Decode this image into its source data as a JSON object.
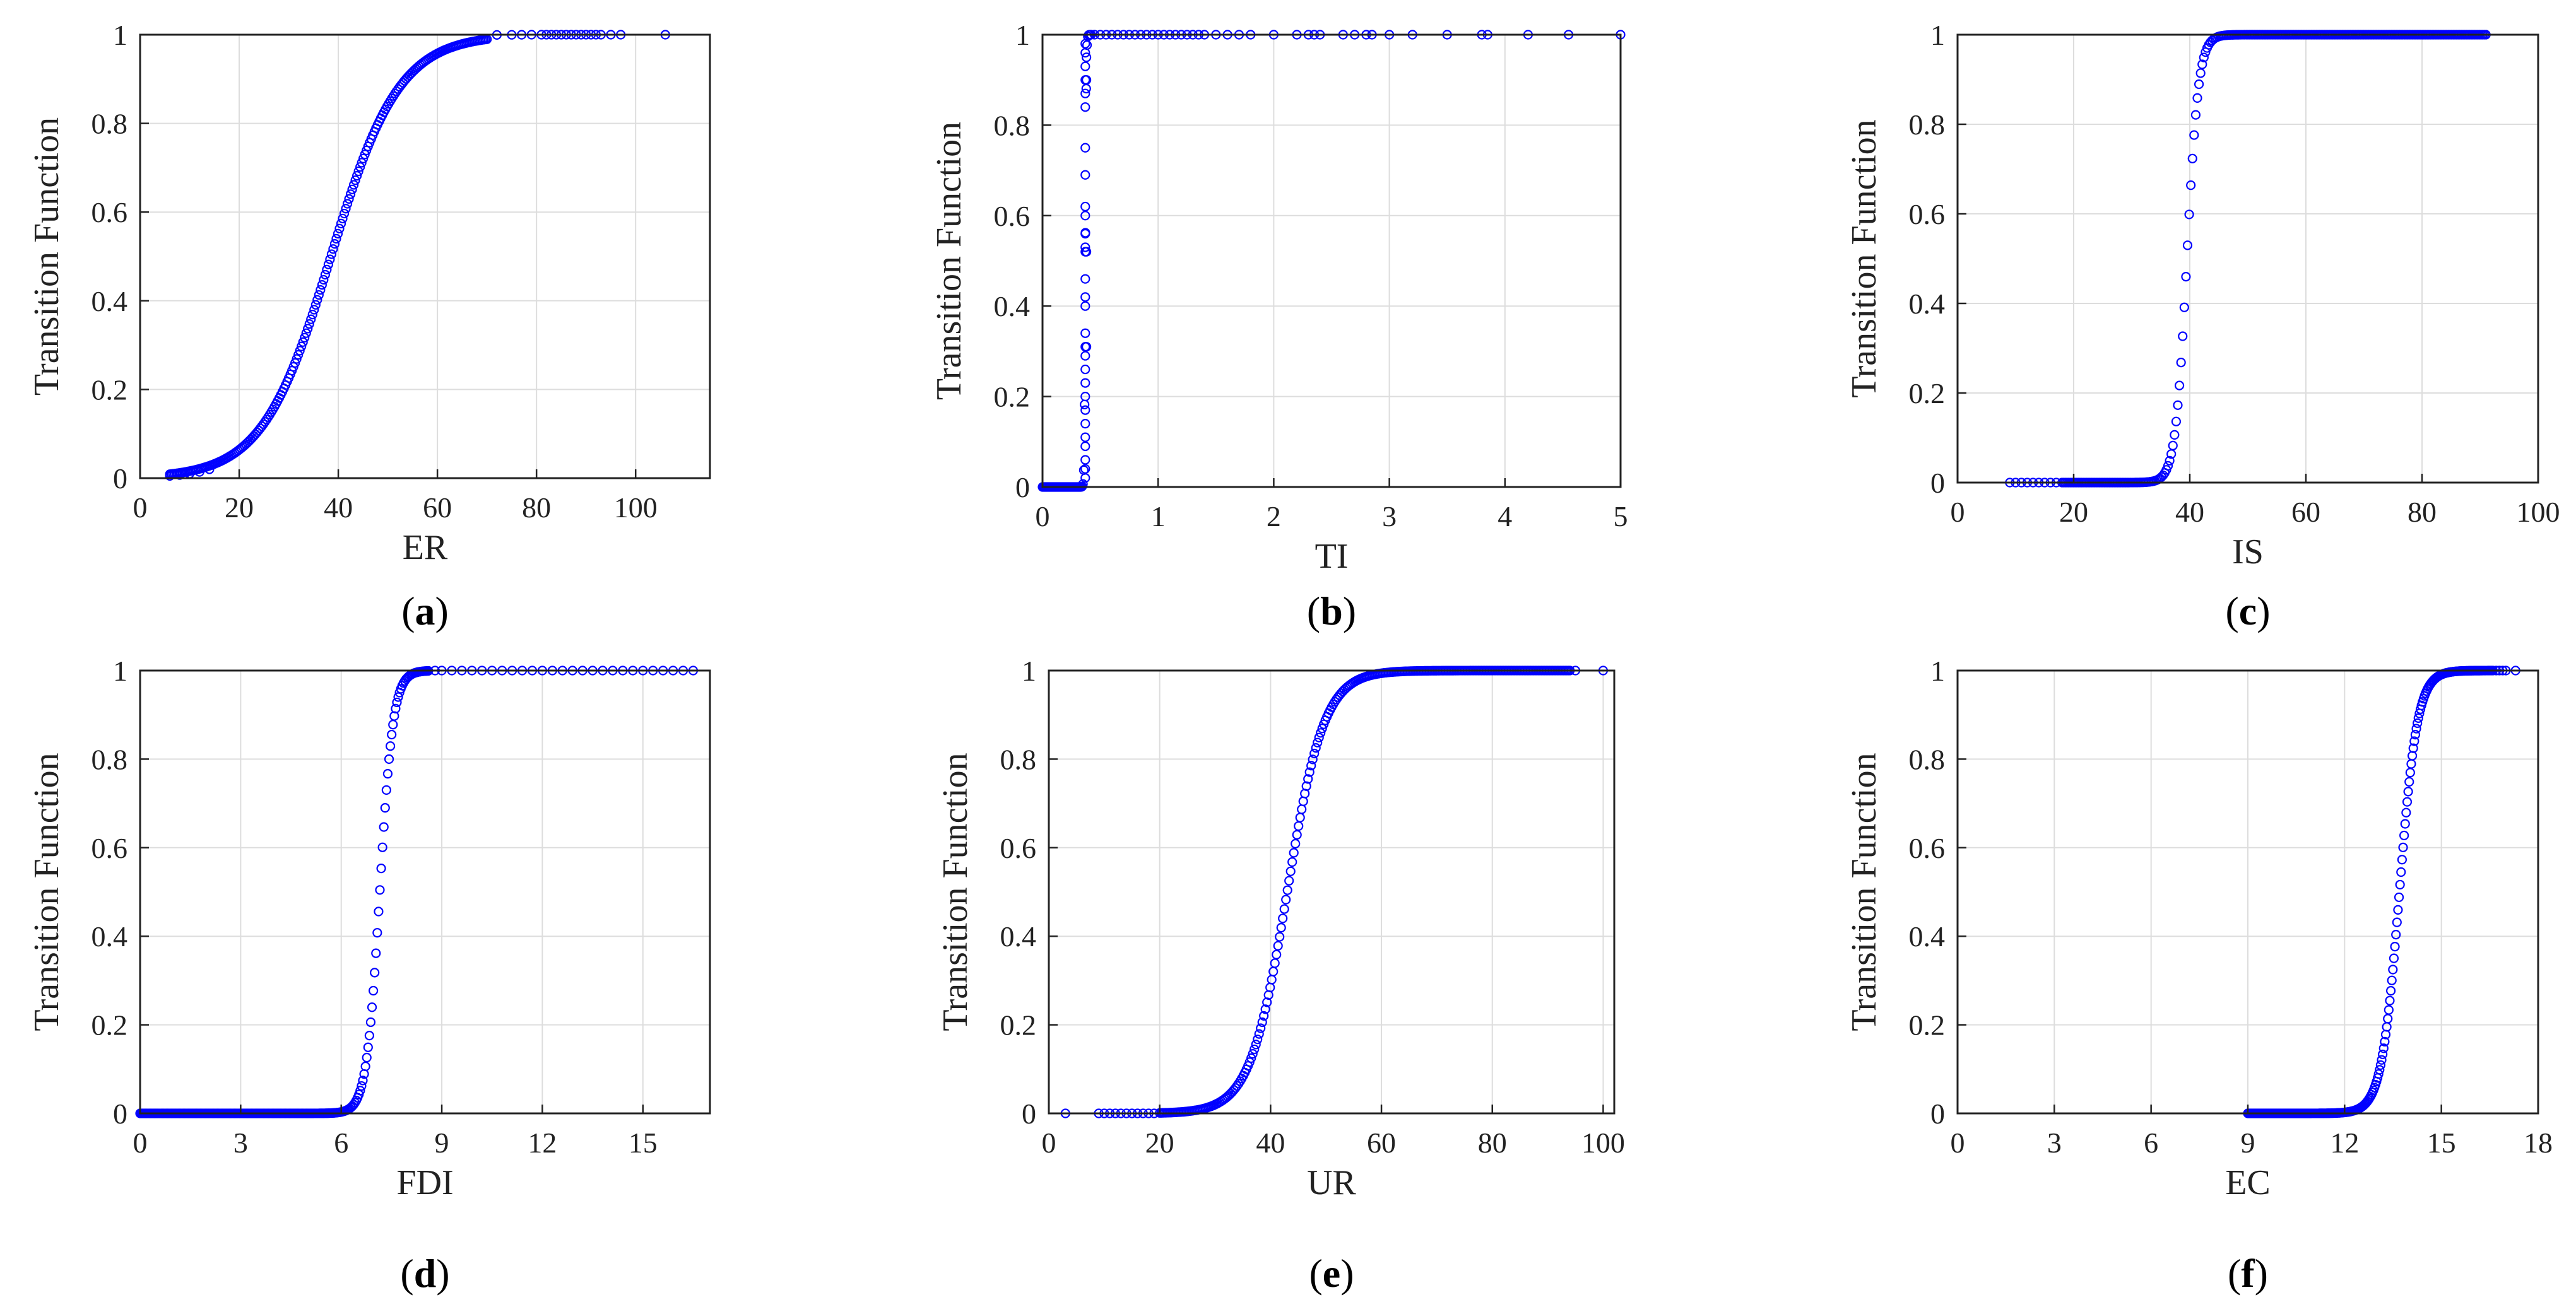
{
  "chart_data": [
    {
      "panel_label": "a",
      "type": "scatter",
      "xlabel": "ER",
      "ylabel": "Transition Function",
      "xlim": [
        0,
        115
      ],
      "ylim": [
        0,
        1
      ],
      "xticks": [
        0,
        20,
        40,
        60,
        80,
        100
      ],
      "yticks": [
        0,
        0.2,
        0.4,
        0.6,
        0.8,
        1
      ],
      "grid": true,
      "marker_color": "#0000ff",
      "transition_curve": {
        "center": 38.5,
        "steepness": 0.145,
        "x_range": [
          6,
          70
        ],
        "dense_points": 200
      },
      "points": [
        [
          6,
          0.005
        ],
        [
          8,
          0.007
        ],
        [
          9,
          0.009
        ],
        [
          10,
          0.01
        ],
        [
          12,
          0.014
        ],
        [
          14,
          0.02
        ],
        [
          72,
          0.9995
        ],
        [
          75,
          0.9997
        ],
        [
          77,
          0.9998
        ],
        [
          79,
          1
        ],
        [
          81,
          1
        ],
        [
          82,
          1
        ],
        [
          83,
          1
        ],
        [
          84,
          1
        ],
        [
          85,
          1
        ],
        [
          86,
          1
        ],
        [
          87,
          1
        ],
        [
          88,
          1
        ],
        [
          89,
          1
        ],
        [
          90,
          1
        ],
        [
          91,
          1
        ],
        [
          92,
          1
        ],
        [
          93,
          1
        ],
        [
          95,
          1
        ],
        [
          97,
          1
        ],
        [
          106,
          1
        ]
      ]
    },
    {
      "panel_label": "b",
      "type": "scatter",
      "xlabel": "TI",
      "ylabel": "Transition Function",
      "xlim": [
        0,
        5
      ],
      "ylim": [
        0,
        1
      ],
      "xticks": [
        0,
        1,
        2,
        3,
        4,
        5
      ],
      "yticks": [
        0,
        0.2,
        0.4,
        0.6,
        0.8,
        1
      ],
      "grid": true,
      "marker_color": "#0000ff",
      "transition_curve": {
        "center": 0.37,
        "steepness": 250,
        "x_range": [
          0,
          0.42
        ],
        "dense_points": 60
      },
      "points": [
        [
          0.37,
          0.02
        ],
        [
          0.37,
          0.04
        ],
        [
          0.37,
          0.06
        ],
        [
          0.37,
          0.09
        ],
        [
          0.37,
          0.11
        ],
        [
          0.37,
          0.14
        ],
        [
          0.37,
          0.17
        ],
        [
          0.37,
          0.2
        ],
        [
          0.37,
          0.23
        ],
        [
          0.37,
          0.26
        ],
        [
          0.37,
          0.29
        ],
        [
          0.37,
          0.31
        ],
        [
          0.37,
          0.34
        ],
        [
          0.37,
          0.4
        ],
        [
          0.37,
          0.42
        ],
        [
          0.37,
          0.46
        ],
        [
          0.37,
          0.52
        ],
        [
          0.37,
          0.53
        ],
        [
          0.37,
          0.56
        ],
        [
          0.37,
          0.6
        ],
        [
          0.37,
          0.62
        ],
        [
          0.37,
          0.69
        ],
        [
          0.37,
          0.75
        ],
        [
          0.37,
          0.84
        ],
        [
          0.37,
          0.87
        ],
        [
          0.37,
          0.9
        ],
        [
          0.37,
          0.93
        ],
        [
          0.37,
          0.96
        ],
        [
          0.37,
          0.98
        ],
        [
          0.38,
          0.95
        ],
        [
          0.38,
          0.9
        ],
        [
          0.38,
          0.52
        ],
        [
          0.38,
          0.31
        ],
        [
          0.45,
          1
        ],
        [
          0.5,
          1
        ],
        [
          0.55,
          1
        ],
        [
          0.6,
          1
        ],
        [
          0.65,
          1
        ],
        [
          0.7,
          1
        ],
        [
          0.75,
          1
        ],
        [
          0.8,
          1
        ],
        [
          0.85,
          1
        ],
        [
          0.9,
          1
        ],
        [
          0.95,
          1
        ],
        [
          1.0,
          1
        ],
        [
          1.05,
          1
        ],
        [
          1.1,
          1
        ],
        [
          1.15,
          1
        ],
        [
          1.2,
          1
        ],
        [
          1.25,
          1
        ],
        [
          1.3,
          1
        ],
        [
          1.35,
          1
        ],
        [
          1.4,
          1
        ],
        [
          1.5,
          1
        ],
        [
          1.6,
          1
        ],
        [
          1.7,
          1
        ],
        [
          1.8,
          1
        ],
        [
          2.0,
          1
        ],
        [
          2.2,
          1
        ],
        [
          2.3,
          1
        ],
        [
          2.35,
          1
        ],
        [
          2.4,
          1
        ],
        [
          2.6,
          1
        ],
        [
          2.7,
          1
        ],
        [
          2.8,
          1
        ],
        [
          2.85,
          1
        ],
        [
          3.0,
          1
        ],
        [
          3.2,
          1
        ],
        [
          3.5,
          1
        ],
        [
          3.8,
          1
        ],
        [
          3.85,
          1
        ],
        [
          4.2,
          1
        ],
        [
          4.55,
          1
        ],
        [
          5.0,
          1
        ]
      ]
    },
    {
      "panel_label": "c",
      "type": "scatter",
      "xlabel": "IS",
      "ylabel": "Transition Function",
      "xlim": [
        0,
        100
      ],
      "ylim": [
        0,
        1
      ],
      "xticks": [
        0,
        20,
        40,
        60,
        80,
        100
      ],
      "yticks": [
        0,
        0.2,
        0.4,
        0.6,
        0.8,
        1
      ],
      "grid": true,
      "marker_color": "#0000ff",
      "transition_curve": {
        "center": 39.5,
        "steepness": 1.0,
        "x_range": [
          18,
          91
        ],
        "dense_points": 260
      },
      "points": [
        [
          9,
          0
        ],
        [
          10,
          0
        ],
        [
          11,
          0
        ],
        [
          12,
          0
        ],
        [
          13,
          0
        ],
        [
          14,
          0
        ],
        [
          15,
          0
        ],
        [
          16,
          0
        ],
        [
          17,
          0
        ]
      ]
    },
    {
      "panel_label": "d",
      "type": "scatter",
      "xlabel": "FDI",
      "ylabel": "Transition Function",
      "xlim": [
        0,
        17
      ],
      "ylim": [
        0,
        1
      ],
      "xticks": [
        0,
        3,
        6,
        9,
        12,
        15
      ],
      "yticks": [
        0,
        0.2,
        0.4,
        0.6,
        0.8,
        1
      ],
      "grid": true,
      "marker_color": "#0000ff",
      "transition_curve": {
        "center": 7.15,
        "steepness": 5.0,
        "x_range": [
          0,
          8.6
        ],
        "dense_points": 220
      },
      "points": [
        [
          8.8,
          1
        ],
        [
          9.0,
          1
        ],
        [
          9.3,
          1
        ],
        [
          9.6,
          1
        ],
        [
          9.9,
          1
        ],
        [
          10.2,
          1
        ],
        [
          10.5,
          1
        ],
        [
          10.8,
          1
        ],
        [
          11.1,
          1
        ],
        [
          11.4,
          1
        ],
        [
          11.7,
          1
        ],
        [
          12.0,
          1
        ],
        [
          12.3,
          1
        ],
        [
          12.6,
          1
        ],
        [
          12.9,
          1
        ],
        [
          13.2,
          1
        ],
        [
          13.5,
          1
        ],
        [
          13.8,
          1
        ],
        [
          14.1,
          1
        ],
        [
          14.4,
          1
        ],
        [
          14.7,
          1
        ],
        [
          15.0,
          1
        ],
        [
          15.3,
          1
        ],
        [
          15.6,
          1
        ],
        [
          15.9,
          1
        ],
        [
          16.2,
          1
        ],
        [
          16.5,
          1
        ]
      ]
    },
    {
      "panel_label": "e",
      "type": "scatter",
      "xlabel": "UR",
      "ylabel": "Transition Function",
      "xlim": [
        0,
        102
      ],
      "ylim": [
        0,
        1
      ],
      "xticks": [
        0,
        20,
        40,
        60,
        80,
        100
      ],
      "yticks": [
        0,
        0.2,
        0.4,
        0.6,
        0.8,
        1
      ],
      "grid": true,
      "marker_color": "#0000ff",
      "transition_curve": {
        "center": 43,
        "steepness": 0.3,
        "x_range": [
          20,
          94
        ],
        "dense_points": 260
      },
      "points": [
        [
          3,
          0
        ],
        [
          9,
          0
        ],
        [
          10,
          0
        ],
        [
          11,
          0
        ],
        [
          12,
          0
        ],
        [
          13,
          0
        ],
        [
          14,
          0
        ],
        [
          15,
          0
        ],
        [
          16,
          0
        ],
        [
          17,
          0
        ],
        [
          18,
          0
        ],
        [
          19,
          0
        ],
        [
          95,
          1
        ],
        [
          100,
          1
        ]
      ]
    },
    {
      "panel_label": "f",
      "type": "scatter",
      "xlabel": "EC",
      "ylabel": "Transition Function",
      "xlim": [
        0,
        18
      ],
      "ylim": [
        0,
        1
      ],
      "xticks": [
        0,
        3,
        6,
        9,
        12,
        15,
        18
      ],
      "yticks": [
        0,
        0.2,
        0.4,
        0.6,
        0.8,
        1
      ],
      "grid": true,
      "marker_color": "#0000ff",
      "transition_curve": {
        "center": 13.7,
        "steepness": 3.6,
        "x_range": [
          9,
          16.6
        ],
        "dense_points": 240
      },
      "points": [
        [
          16.7,
          1
        ],
        [
          16.8,
          1
        ],
        [
          16.9,
          1
        ],
        [
          17.0,
          1
        ],
        [
          17.3,
          1
        ]
      ]
    }
  ]
}
